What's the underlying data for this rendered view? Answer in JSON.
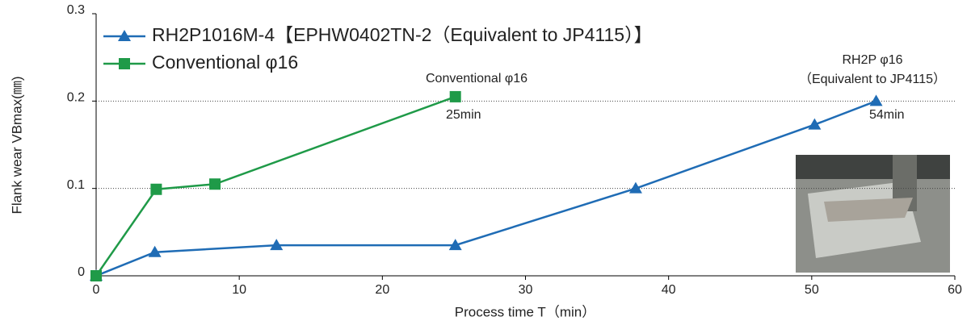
{
  "chart_data": {
    "type": "line",
    "xlabel": "Process time T（min）",
    "ylabel": "Flank wear VBmax(㎜)",
    "series": [
      {
        "name": "RH2P1016M-4【EPHW0402TN-2（Equivalent to JP4115）】",
        "color": "#1f6cb5",
        "marker": "triangle",
        "x": [
          0,
          4.1,
          12.6,
          25.1,
          37.7,
          50.2,
          54.5
        ],
        "values": [
          0,
          0.027,
          0.035,
          0.035,
          0.1,
          0.173,
          0.2
        ]
      },
      {
        "name": "Conventional φ16",
        "color": "#1f9a48",
        "marker": "square",
        "x": [
          0,
          4.2,
          8.3,
          25.1
        ],
        "values": [
          0,
          0.099,
          0.105,
          0.205
        ]
      }
    ],
    "annotations": [
      "Conventional φ16",
      "25min",
      "RH2P φ16",
      "（Equivalent to JP4115）",
      "54min"
    ],
    "xlim": [
      0,
      60
    ],
    "xticks": [
      0,
      10,
      20,
      30,
      40,
      50,
      60
    ],
    "ylim": [
      0,
      0.3
    ],
    "yticks": [
      0,
      0.1,
      0.2,
      0.3
    ],
    "grid": true,
    "legend": "top-left"
  }
}
